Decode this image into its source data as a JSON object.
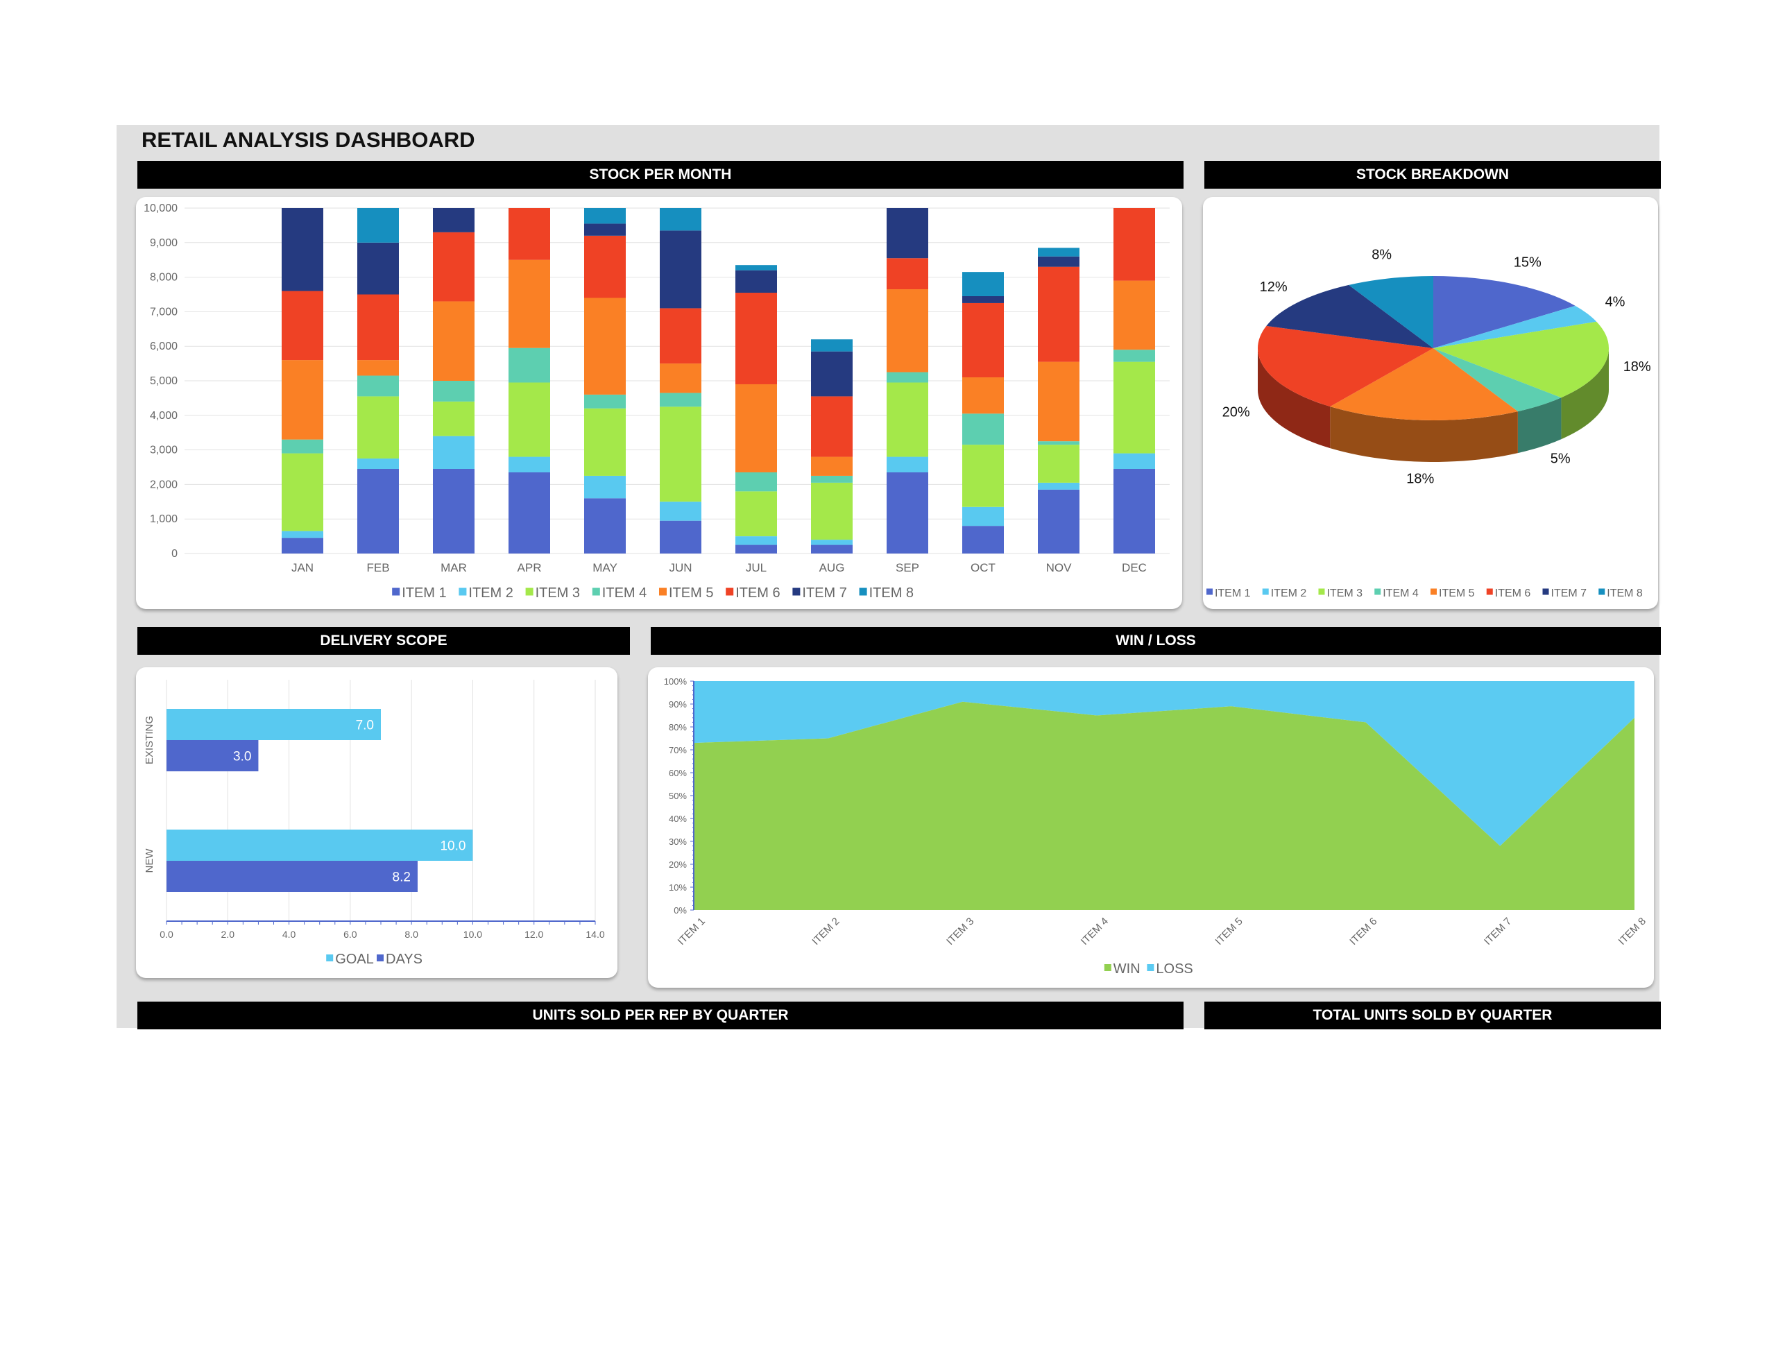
{
  "dashboard": {
    "title": "RETAIL ANALYSIS DASHBOARD",
    "headers": {
      "stock_per_month": "STOCK PER MONTH",
      "stock_breakdown": "STOCK BREAKDOWN",
      "delivery_scope": "DELIVERY SCOPE",
      "win_loss": "WIN / LOSS",
      "units_sold_per_rep": "UNITS SOLD PER REP BY QUARTER",
      "total_units_sold": "TOTAL UNITS SOLD BY QUARTER"
    }
  },
  "chart_data": [
    {
      "id": "stock_per_month",
      "type": "bar",
      "stacked": true,
      "categories": [
        "JAN",
        "FEB",
        "MAR",
        "APR",
        "MAY",
        "JUN",
        "JUL",
        "AUG",
        "SEP",
        "OCT",
        "NOV",
        "DEC"
      ],
      "ylim": [
        0,
        10000
      ],
      "yticks": [
        0,
        1000,
        2000,
        3000,
        4000,
        5000,
        6000,
        7000,
        8000,
        9000,
        10000
      ],
      "ytick_labels": [
        "0",
        "1,000",
        "2,000",
        "3,000",
        "4,000",
        "5,000",
        "6,000",
        "7,000",
        "8,000",
        "9,000",
        "10,000"
      ],
      "grid": true,
      "legend_position": "bottom",
      "colors": [
        "#4f67cc",
        "#59c9f0",
        "#a4e84a",
        "#5dcfb0",
        "#fa8025",
        "#ef4225",
        "#253a80",
        "#168fbf"
      ],
      "series": [
        {
          "name": "ITEM 1",
          "values": [
            450,
            2450,
            2450,
            2350,
            1600,
            950,
            250,
            250,
            2350,
            800,
            1850,
            2450
          ]
        },
        {
          "name": "ITEM 2",
          "values": [
            200,
            300,
            950,
            450,
            650,
            550,
            250,
            150,
            450,
            550,
            200,
            450
          ]
        },
        {
          "name": "ITEM 3",
          "values": [
            2250,
            1800,
            1000,
            2150,
            1950,
            2750,
            1300,
            1650,
            2150,
            1800,
            1100,
            2650
          ]
        },
        {
          "name": "ITEM 4",
          "values": [
            400,
            600,
            600,
            1000,
            400,
            400,
            550,
            200,
            300,
            900,
            100,
            350
          ]
        },
        {
          "name": "ITEM 5",
          "values": [
            2300,
            450,
            2300,
            2550,
            2800,
            850,
            2550,
            550,
            2400,
            1050,
            2300,
            2000
          ]
        },
        {
          "name": "ITEM 6",
          "values": [
            2000,
            1900,
            2000,
            1500,
            1800,
            1600,
            2650,
            1750,
            900,
            2150,
            2750,
            2100
          ]
        },
        {
          "name": "ITEM 7",
          "values": [
            2400,
            1500,
            700,
            0,
            350,
            2250,
            650,
            1300,
            1450,
            200,
            300,
            0
          ]
        },
        {
          "name": "ITEM 8",
          "values": [
            0,
            1000,
            0,
            0,
            450,
            650,
            150,
            350,
            0,
            700,
            250,
            0
          ]
        }
      ]
    },
    {
      "id": "stock_breakdown",
      "type": "pie",
      "legend_position": "bottom",
      "categories": [
        "ITEM 1",
        "ITEM 2",
        "ITEM 3",
        "ITEM 4",
        "ITEM 5",
        "ITEM 6",
        "ITEM 7",
        "ITEM 8"
      ],
      "values": [
        15,
        4,
        18,
        5,
        18,
        20,
        12,
        8
      ],
      "labels": [
        "15%",
        "4%",
        "18%",
        "5%",
        "18%",
        "20%",
        "12%",
        "8%"
      ],
      "colors": [
        "#4f67cc",
        "#59c9f0",
        "#a4e84a",
        "#5dcfb0",
        "#fa8025",
        "#ef4225",
        "#253a80",
        "#168fbf"
      ]
    },
    {
      "id": "delivery_scope",
      "type": "bar",
      "orientation": "horizontal",
      "categories": [
        "EXISTING",
        "NEW"
      ],
      "xlim": [
        0,
        14
      ],
      "xticks": [
        0,
        2,
        4,
        6,
        8,
        10,
        12,
        14
      ],
      "xtick_labels": [
        "0.0",
        "2.0",
        "4.0",
        "6.0",
        "8.0",
        "10.0",
        "12.0",
        "14.0"
      ],
      "grid": true,
      "legend_position": "bottom",
      "series": [
        {
          "name": "GOAL",
          "values": [
            7.0,
            10.0
          ],
          "labels": [
            "7.0",
            "10.0"
          ],
          "color": "#59c9f0"
        },
        {
          "name": "DAYS",
          "values": [
            3.0,
            8.2
          ],
          "labels": [
            "3.0",
            "8.2"
          ],
          "color": "#4f67cc"
        }
      ]
    },
    {
      "id": "win_loss",
      "type": "area",
      "stacked": true,
      "percent": true,
      "categories": [
        "ITEM 1",
        "ITEM 2",
        "ITEM 3",
        "ITEM 4",
        "ITEM 5",
        "ITEM 6",
        "ITEM 7",
        "ITEM 8"
      ],
      "ylim": [
        0,
        100
      ],
      "yticks": [
        0,
        10,
        20,
        30,
        40,
        50,
        60,
        70,
        80,
        90,
        100
      ],
      "ytick_labels": [
        "0%",
        "10%",
        "20%",
        "30%",
        "40%",
        "50%",
        "60%",
        "70%",
        "80%",
        "90%",
        "100%"
      ],
      "legend_position": "bottom",
      "series": [
        {
          "name": "WIN",
          "values": [
            73,
            75,
            91,
            85,
            89,
            82,
            28,
            84
          ],
          "color": "#92d050"
        },
        {
          "name": "LOSS",
          "values": [
            27,
            25,
            9,
            15,
            11,
            18,
            72,
            16
          ],
          "color": "#5bcbf2"
        }
      ]
    }
  ]
}
